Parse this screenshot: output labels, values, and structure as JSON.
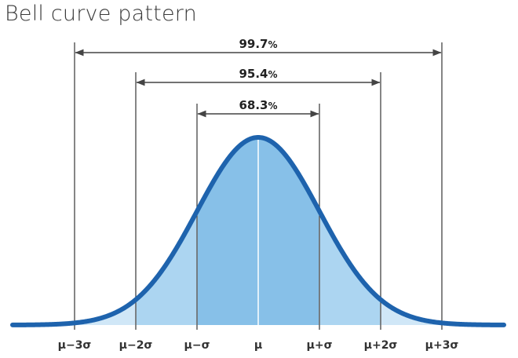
{
  "title": "Bell curve pattern",
  "intervals": [
    {
      "value": "99.7",
      "unit": "%",
      "sigma": 3
    },
    {
      "value": "95.4",
      "unit": "%",
      "sigma": 2
    },
    {
      "value": "68.3",
      "unit": "%",
      "sigma": 1
    }
  ],
  "tick_labels": [
    "μ−3σ",
    "μ−2σ",
    "μ−σ",
    "μ",
    "μ+σ",
    "μ+2σ",
    "μ+3σ"
  ],
  "colors": {
    "curve": "#1e63ad",
    "fill_inner": "#87c0e8",
    "fill_middle": "#acd5f1",
    "fill_outer": "#d0e7f7",
    "divider": "#ffffff",
    "guide_line": "#444444",
    "text": "#222222"
  }
}
